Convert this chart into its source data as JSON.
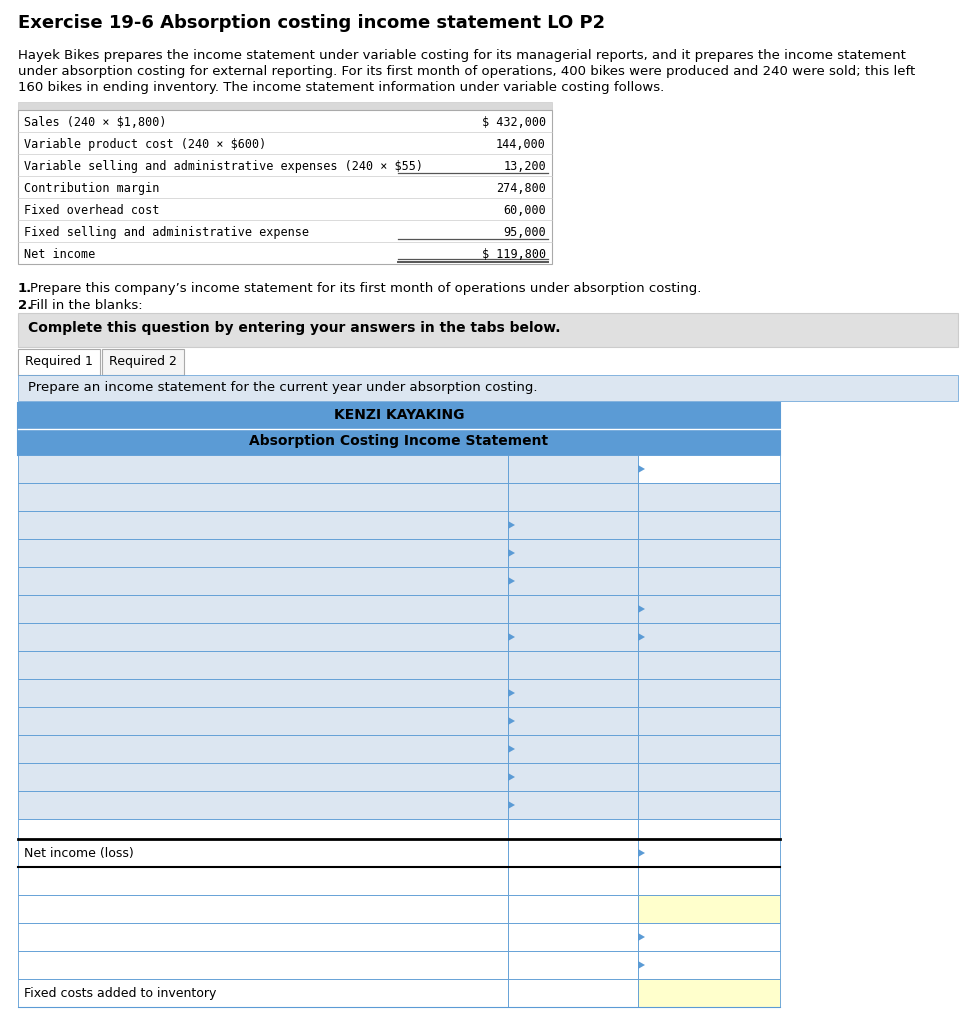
{
  "title": "Exercise 19-6 Absorption costing income statement LO P2",
  "paragraph_lines": [
    "Hayek Bikes prepares the income statement under variable costing for its managerial reports, and it prepares the income statement",
    "under absorption costing for external reporting. For its first month of operations, 400 bikes were produced and 240 were sold; this left",
    "160 bikes in ending inventory. The income statement information under variable costing follows."
  ],
  "table1_rows": [
    [
      "Sales (240 × $1,800)",
      "$ 432,000"
    ],
    [
      "Variable product cost (240 × $600)",
      "144,000"
    ],
    [
      "Variable selling and administrative expenses (240 × $55)",
      "13,200"
    ],
    [
      "Contribution margin",
      "274,800"
    ],
    [
      "Fixed overhead cost",
      "60,000"
    ],
    [
      "Fixed selling and administrative expense",
      "95,000"
    ],
    [
      "Net income",
      "$ 119,800"
    ]
  ],
  "instr1_bold": "1.",
  "instr1_text": " Prepare this company’s income statement for its first month of operations under absorption costing.",
  "instr2_bold": "2.",
  "instr2_text": " Fill in the blanks:",
  "gray_box_text": "Complete this question by entering your answers in the tabs below.",
  "tab1": "Required 1",
  "tab2": "Required 2",
  "blue_bar_text": "Prepare an income statement for the current year under absorption costing.",
  "table2_header1": "KENZI KAYAKING",
  "table2_header2": "Absorption Costing Income Statement",
  "header_bg": "#5b9bd5",
  "light_blue": "#dce6f1",
  "white": "#ffffff",
  "yellow": "#ffffcc",
  "gray_bg": "#e0e0e0",
  "net_income_label": "Net income (loss)",
  "fixed_costs_label": "Fixed costs added to inventory",
  "border_blue": "#5b9bd5",
  "border_gray": "#aaaaaa",
  "table1_bg": "#e8e8e8"
}
